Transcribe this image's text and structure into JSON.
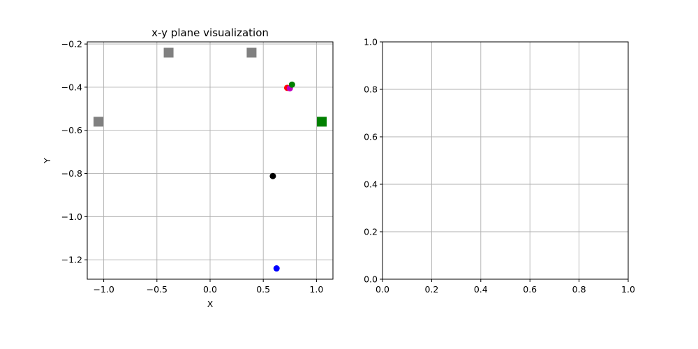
{
  "chart_data": [
    {
      "type": "scatter",
      "title": "x-y plane visualization",
      "xlabel": "X",
      "ylabel": "Y",
      "xlim": [
        -1.155,
        1.155
      ],
      "ylim": [
        -1.29,
        -0.19
      ],
      "xticks": [
        -1.0,
        -0.5,
        0.0,
        0.5,
        1.0
      ],
      "xtick_labels": [
        "−1.0",
        "−0.5",
        "0.0",
        "0.5",
        "1.0"
      ],
      "yticks": [
        -1.2,
        -1.0,
        -0.8,
        -0.6,
        -0.4,
        -0.2
      ],
      "ytick_labels": [
        "−1.2",
        "−1.0",
        "−0.8",
        "−0.6",
        "−0.4",
        "−0.2"
      ],
      "grid": true,
      "series": [
        {
          "marker": "square",
          "color": "#808080",
          "points": [
            [
              -1.05,
              -0.56
            ],
            [
              -0.39,
              -0.24
            ],
            [
              0.39,
              -0.24
            ]
          ]
        },
        {
          "marker": "square",
          "color": "#008000",
          "points": [
            [
              1.05,
              -0.56
            ]
          ]
        },
        {
          "marker": "circle",
          "color": "#ff0000",
          "points": [
            [
              0.725,
              -0.403
            ]
          ]
        },
        {
          "marker": "circle",
          "color": "#bf00bf",
          "points": [
            [
              0.75,
              -0.405
            ]
          ]
        },
        {
          "marker": "circle",
          "color": "#008000",
          "points": [
            [
              0.77,
              -0.388
            ]
          ]
        },
        {
          "marker": "circle",
          "color": "#000000",
          "points": [
            [
              0.59,
              -0.812
            ]
          ]
        },
        {
          "marker": "circle",
          "color": "#0000ff",
          "points": [
            [
              0.625,
              -1.24
            ]
          ]
        }
      ]
    },
    {
      "type": "scatter",
      "title": "",
      "xlabel": "",
      "ylabel": "",
      "xlim": [
        0,
        1
      ],
      "ylim": [
        0,
        1
      ],
      "xticks": [
        0.0,
        0.2,
        0.4,
        0.6,
        0.8,
        1.0
      ],
      "xtick_labels": [
        "0.0",
        "0.2",
        "0.4",
        "0.6",
        "0.8",
        "1.0"
      ],
      "yticks": [
        0.0,
        0.2,
        0.4,
        0.6,
        0.8,
        1.0
      ],
      "ytick_labels": [
        "0.0",
        "0.2",
        "0.4",
        "0.6",
        "0.8",
        "1.0"
      ],
      "grid": true,
      "series": []
    }
  ]
}
